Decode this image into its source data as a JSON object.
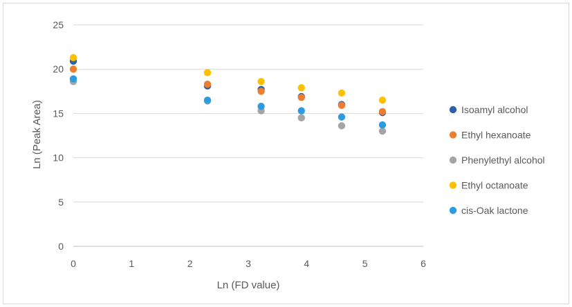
{
  "chart_data": {
    "type": "scatter",
    "title": "",
    "xlabel": "Ln (FD value)",
    "ylabel": "Ln (Peak Area)",
    "xlim": [
      0,
      6
    ],
    "ylim": [
      0,
      25
    ],
    "xticks": [
      0,
      1,
      2,
      3,
      4,
      5,
      6
    ],
    "yticks": [
      0,
      5,
      10,
      15,
      20,
      25
    ],
    "grid": "horizontal",
    "legend_position": "right",
    "series": [
      {
        "name": "Isoamyl alcohol",
        "color": "#2e5fa8",
        "x": [
          0,
          2.3,
          3.22,
          3.91,
          4.6,
          5.3
        ],
        "y": [
          20.9,
          18.1,
          17.7,
          16.9,
          16.0,
          15.1
        ]
      },
      {
        "name": "Ethyl hexanoate",
        "color": "#ed7d31",
        "x": [
          0,
          2.3,
          3.22,
          3.91,
          4.6,
          5.3
        ],
        "y": [
          20.0,
          18.3,
          17.5,
          16.8,
          15.9,
          15.2
        ]
      },
      {
        "name": "Phenylethyl alcohol",
        "color": "#a5a5a5",
        "x": [
          0,
          2.3,
          3.22,
          3.91,
          4.6,
          5.3
        ],
        "y": [
          18.6,
          16.4,
          15.3,
          14.5,
          13.6,
          13.0
        ]
      },
      {
        "name": "Ethyl octanoate",
        "color": "#ffc000",
        "x": [
          0,
          2.3,
          3.22,
          3.91,
          4.6,
          5.3
        ],
        "y": [
          21.3,
          19.6,
          18.6,
          17.9,
          17.3,
          16.5
        ]
      },
      {
        "name": "cis-Oak lactone",
        "color": "#2e9be0",
        "x": [
          0,
          2.3,
          3.22,
          3.91,
          4.6,
          5.3
        ],
        "y": [
          18.9,
          16.5,
          15.8,
          15.3,
          14.6,
          13.7
        ]
      }
    ]
  }
}
